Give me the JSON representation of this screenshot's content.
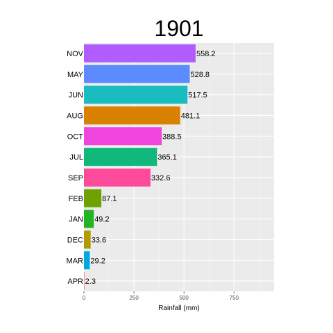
{
  "chart_data": {
    "type": "bar",
    "orientation": "horizontal",
    "title": "1901",
    "xlabel": "Rainfall (mm)",
    "ylabel": "",
    "xlim": [
      0,
      950
    ],
    "xticks": [
      0,
      250,
      500,
      750
    ],
    "grid": true,
    "legend": "none",
    "categories": [
      "NOV",
      "MAY",
      "JUN",
      "AUG",
      "OCT",
      "JUL",
      "SEP",
      "FEB",
      "JAN",
      "DEC",
      "MAR",
      "APR"
    ],
    "values": [
      558.2,
      528.8,
      517.5,
      481.1,
      388.5,
      365.1,
      332.6,
      87.1,
      49.2,
      33.6,
      29.2,
      2.3
    ],
    "value_labels": [
      "558.2",
      "528.8",
      "517.5",
      "481.1",
      "388.5",
      "365.1",
      "332.6",
      "87.1",
      "49.2",
      "33.6",
      "29.2",
      "2.3"
    ],
    "colors": [
      "#b05cff",
      "#5c8aff",
      "#19bcbf",
      "#d98100",
      "#ef45de",
      "#12b77c",
      "#fd4a9b",
      "#6fa200",
      "#23b424",
      "#b29a00",
      "#00a8e2",
      "#f8766d"
    ]
  }
}
